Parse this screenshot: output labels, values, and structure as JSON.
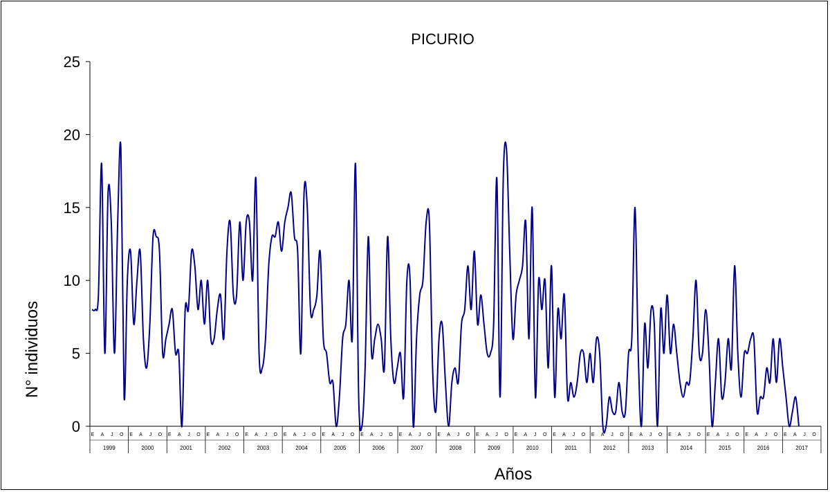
{
  "chart_data": {
    "type": "line",
    "title": "PICURIO",
    "xlabel": "Años",
    "ylabel": "N° individuos",
    "ylim": [
      0,
      25
    ],
    "yticks": [
      0,
      5,
      10,
      15,
      20,
      25
    ],
    "grid": false,
    "legend": "none",
    "line_color": "#00008B",
    "month_labels": [
      "E",
      "A",
      "J",
      "O"
    ],
    "years": [
      "1999",
      "2000",
      "2001",
      "2002",
      "2003",
      "2004",
      "2005",
      "2006",
      "2007",
      "2008",
      "2009",
      "2010",
      "2011",
      "2012",
      "2013",
      "2014",
      "2015",
      "2016",
      "2017"
    ],
    "series": [
      {
        "values": [
          8,
          8,
          9,
          18,
          5,
          16,
          14,
          5,
          14,
          19,
          2,
          10,
          12,
          7,
          10,
          12,
          6,
          4,
          7,
          13,
          13,
          12,
          5,
          6,
          7,
          8,
          5,
          5,
          0,
          8,
          8,
          12,
          11,
          8,
          10,
          7,
          10,
          6,
          6,
          8,
          9,
          6,
          12,
          14,
          9,
          9,
          14,
          10,
          14,
          14,
          10,
          17,
          5,
          4,
          6,
          11,
          13,
          13,
          14,
          12,
          14,
          15,
          16,
          13,
          12,
          5,
          16,
          15,
          8,
          8,
          9,
          12,
          6,
          5,
          3,
          3,
          0,
          2,
          6,
          7,
          10,
          6,
          18,
          2,
          0,
          4,
          13,
          5,
          6,
          7,
          6,
          4,
          13,
          6,
          3,
          4,
          5,
          2,
          10,
          10,
          0,
          6,
          9,
          10,
          14,
          14,
          4,
          1,
          6,
          7,
          3,
          0,
          3,
          4,
          3,
          7,
          8,
          11,
          8,
          12,
          7,
          9,
          7,
          5,
          5,
          7,
          17,
          2,
          17,
          19,
          12,
          6,
          9,
          10,
          11,
          14,
          6,
          15,
          2,
          10,
          8,
          10,
          4,
          11,
          2,
          8,
          6,
          9,
          2,
          3,
          2,
          3,
          5,
          5,
          3,
          5,
          3,
          6,
          5,
          0,
          0,
          2,
          1,
          1,
          3,
          1,
          1,
          5,
          6,
          15,
          5,
          0,
          7,
          4,
          8,
          7,
          0,
          8,
          5,
          9,
          5,
          7,
          5,
          3,
          2,
          3,
          3,
          6,
          10,
          5,
          5,
          8,
          5,
          0,
          3,
          6,
          2,
          3,
          6,
          4,
          11,
          5,
          2,
          5,
          5,
          6,
          6,
          1,
          2,
          2,
          4,
          3,
          6,
          3,
          6,
          4,
          2,
          0,
          1,
          2,
          0
        ]
      }
    ]
  }
}
